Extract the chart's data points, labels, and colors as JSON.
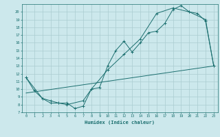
{
  "xlabel": "Humidex (Indice chaleur)",
  "xlim": [
    -0.5,
    23.5
  ],
  "ylim": [
    7,
    21
  ],
  "yticks": [
    7,
    8,
    9,
    10,
    11,
    12,
    13,
    14,
    15,
    16,
    17,
    18,
    19,
    20
  ],
  "xticks": [
    0,
    1,
    2,
    3,
    4,
    5,
    6,
    7,
    8,
    9,
    10,
    11,
    12,
    13,
    14,
    15,
    16,
    17,
    18,
    19,
    20,
    21,
    22,
    23
  ],
  "bg_color": "#cce8ec",
  "grid_color": "#aaccd0",
  "line_color": "#1a6e6e",
  "line1_x": [
    0,
    1,
    2,
    3,
    4,
    5,
    6,
    7,
    8,
    9,
    10,
    11,
    12,
    13,
    14,
    15,
    16,
    17,
    18,
    19,
    20,
    21,
    22,
    23
  ],
  "line1_y": [
    11.5,
    9.8,
    8.8,
    8.2,
    8.2,
    8.2,
    7.5,
    7.8,
    10.0,
    10.2,
    13.0,
    15.0,
    16.2,
    14.8,
    16.0,
    17.3,
    17.5,
    18.5,
    20.3,
    20.8,
    20.0,
    19.8,
    18.8,
    13.0
  ],
  "line2_x": [
    0,
    2,
    3,
    4,
    5,
    7,
    8,
    10,
    12,
    14,
    16,
    18,
    20,
    22,
    23
  ],
  "line2_y": [
    11.5,
    8.8,
    8.5,
    8.2,
    8.0,
    8.5,
    10.0,
    12.5,
    14.5,
    16.5,
    19.8,
    20.5,
    20.0,
    19.0,
    13.0
  ],
  "line3_x": [
    0,
    23
  ],
  "line3_y": [
    9.5,
    13.0
  ]
}
